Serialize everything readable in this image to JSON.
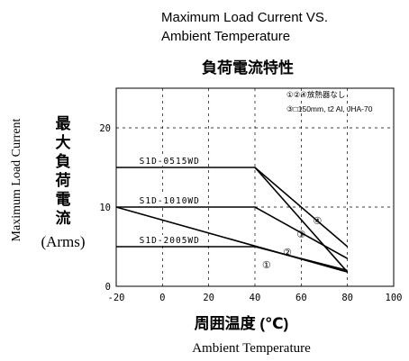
{
  "chart_data": {
    "type": "line",
    "title_en_line1": "Maximum Load Current VS.",
    "title_en_line2": "Ambient Temperature",
    "title_jp": "負荷電流特性",
    "xlabel_jp": "周囲温度 (℃)",
    "xlabel_en": "Ambient Temperature",
    "ylabel_en": "Maximum Load Current",
    "ylabel_jp_chars": [
      "最",
      "大",
      "負",
      "荷",
      "電",
      "流"
    ],
    "ylabel_unit": "(Arms)",
    "xlim": [
      -20,
      100
    ],
    "ylim": [
      0,
      25
    ],
    "x_ticks": [
      -20,
      0,
      20,
      40,
      60,
      80,
      100
    ],
    "x_tick_labels": [
      "-20",
      "0",
      "20",
      "40",
      "60",
      "80",
      "100"
    ],
    "y_ticks": [
      0,
      10,
      20
    ],
    "y_tick_labels": [
      "0",
      "10",
      "20"
    ],
    "grid": "dashed",
    "legend_notes": [
      "①②④放熱器なし",
      "③□150mm, t2 Al, JHA-70"
    ],
    "series": [
      {
        "name": "S1D-0515WD",
        "x": [
          -20,
          40,
          80
        ],
        "y": [
          15,
          15,
          5
        ]
      },
      {
        "name": "S1D-1010WD",
        "x": [
          -20,
          40,
          80
        ],
        "y": [
          10,
          10,
          3.5
        ]
      },
      {
        "name": "S1D-2005WD",
        "x": [
          -20,
          40,
          80
        ],
        "y": [
          5,
          5,
          2
        ]
      },
      {
        "name": "",
        "x": [
          -20,
          80
        ],
        "y": [
          10,
          1.8
        ]
      },
      {
        "name": "",
        "x": [
          40,
          80
        ],
        "y": [
          15,
          1.8
        ]
      }
    ],
    "markers": [
      {
        "label": "①",
        "x": 45,
        "y": 2.7
      },
      {
        "label": "②",
        "x": 54,
        "y": 4.3
      },
      {
        "label": "③",
        "x": 60,
        "y": 6.6
      },
      {
        "label": "④",
        "x": 67,
        "y": 8.3
      }
    ],
    "line_color": "#000000"
  }
}
